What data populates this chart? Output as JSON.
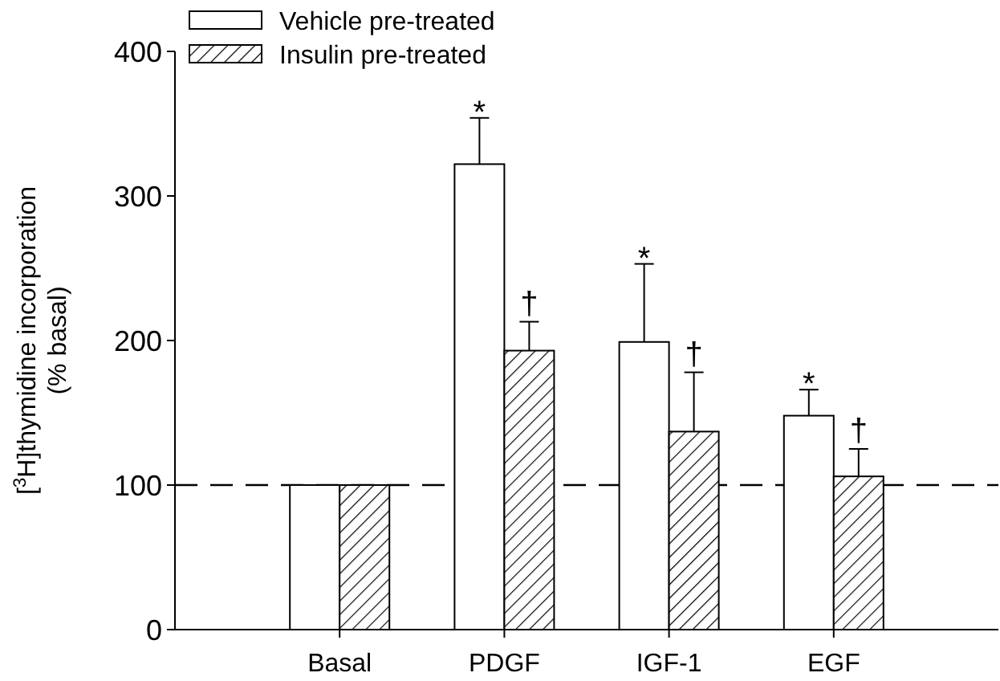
{
  "chart_data": {
    "type": "bar",
    "ylabel": "[$^{3}$H]thymidine incorporation (% basal)",
    "categories": [
      "Basal",
      "PDGF",
      "IGF-1",
      "EGF"
    ],
    "series": [
      {
        "name": "Vehicle pre-treated",
        "color": "#ffffff",
        "values": [
          100,
          322,
          199,
          148
        ],
        "errors": [
          null,
          32,
          54,
          18
        ]
      },
      {
        "name": "Insulin pre-treated",
        "color": "#000000",
        "values": [
          100,
          193,
          137,
          106
        ],
        "errors": [
          null,
          20,
          41,
          19
        ]
      }
    ],
    "ylim": [
      0,
      400
    ],
    "yticks": [
      0,
      100,
      200,
      300,
      400
    ],
    "grid": false,
    "legend": "top left",
    "ref_lines": [
      {
        "axis": "y",
        "value": 100,
        "line_style": "dashed"
      }
    ],
    "annotations": [
      {
        "text": "*",
        "x": "PDGF",
        "y": 322
      },
      {
        "text": "†",
        "x": "PDGF",
        "y": 193
      },
      {
        "text": "*",
        "x": "IGF-1",
        "y": 199
      },
      {
        "text": "†",
        "x": "IGF-1",
        "y": 137
      },
      {
        "text": "*",
        "x": "EGF",
        "y": 148
      },
      {
        "text": "†",
        "x": "EGF",
        "y": 106
      }
    ]
  }
}
